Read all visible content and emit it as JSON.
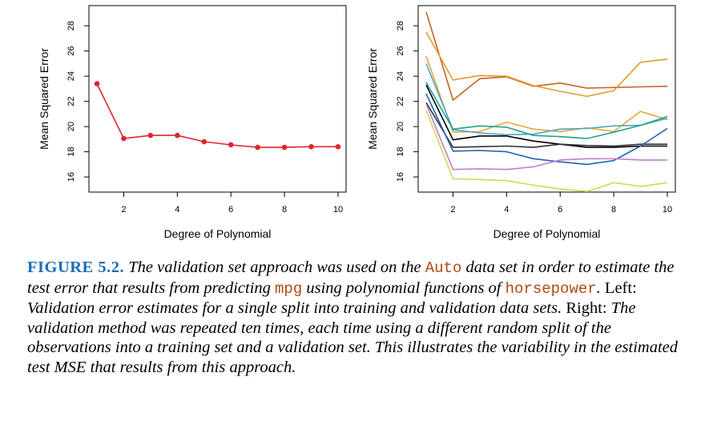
{
  "chart_data": [
    {
      "type": "line",
      "panel": "left",
      "xlabel": "Degree of Polynomial",
      "ylabel": "Mean Squared Error",
      "xlim": [
        0.7,
        10.3
      ],
      "ylim": [
        14.8,
        29.6
      ],
      "xticks": [
        2,
        4,
        6,
        8,
        10
      ],
      "yticks": [
        16,
        18,
        20,
        22,
        24,
        26,
        28
      ],
      "grid": false,
      "x": [
        1,
        2,
        3,
        4,
        5,
        6,
        7,
        8,
        9,
        10
      ],
      "series": [
        {
          "color": "#e0262f",
          "markers": true,
          "values": [
            23.4,
            19.05,
            19.3,
            19.3,
            18.8,
            18.55,
            18.35,
            18.35,
            18.4,
            18.4
          ]
        }
      ]
    },
    {
      "type": "line",
      "panel": "right",
      "xlabel": "Degree of Polynomial",
      "ylabel": "Mean Squared Error",
      "xlim": [
        0.7,
        10.3
      ],
      "ylim": [
        14.8,
        29.6
      ],
      "xticks": [
        2,
        4,
        6,
        8,
        10
      ],
      "yticks": [
        16,
        18,
        20,
        22,
        24,
        26,
        28
      ],
      "grid": false,
      "x": [
        1,
        2,
        3,
        4,
        5,
        6,
        7,
        8,
        9,
        10
      ],
      "series": [
        {
          "color": "#c8631f",
          "values": [
            29.1,
            22.1,
            23.8,
            23.95,
            23.2,
            23.45,
            23.05,
            23.1,
            23.15,
            23.2
          ]
        },
        {
          "color": "#e39b2c",
          "values": [
            27.5,
            23.7,
            24.05,
            24.0,
            23.25,
            22.8,
            22.4,
            22.85,
            25.1,
            25.35
          ]
        },
        {
          "color": "#e8a93a",
          "values": [
            25.6,
            19.55,
            19.6,
            20.35,
            19.8,
            19.6,
            19.9,
            19.6,
            21.2,
            20.55
          ]
        },
        {
          "color": "#4aa6c9",
          "values": [
            25.0,
            19.75,
            19.5,
            19.35,
            19.4,
            19.8,
            19.85,
            20.05,
            20.1,
            20.65
          ]
        },
        {
          "color": "#23a38b",
          "values": [
            23.5,
            19.8,
            20.05,
            19.95,
            19.3,
            19.2,
            19.05,
            19.55,
            20.1,
            20.8
          ]
        },
        {
          "color": "#000000",
          "values": [
            23.3,
            18.95,
            19.25,
            19.25,
            18.85,
            18.6,
            18.35,
            18.35,
            18.45,
            18.45
          ]
        },
        {
          "color": "#333333",
          "values": [
            21.9,
            18.35,
            18.4,
            18.45,
            18.35,
            18.6,
            18.5,
            18.45,
            18.6,
            18.6
          ]
        },
        {
          "color": "#1f63ae",
          "values": [
            22.6,
            18.05,
            18.1,
            18.0,
            17.45,
            17.2,
            17.0,
            17.3,
            18.45,
            19.85
          ]
        },
        {
          "color": "#c57ad0",
          "values": [
            21.8,
            16.6,
            16.65,
            16.6,
            16.8,
            17.35,
            17.45,
            17.45,
            17.35,
            17.35
          ]
        },
        {
          "color": "#cbdc56",
          "values": [
            21.3,
            15.85,
            15.8,
            15.7,
            15.35,
            15.05,
            14.85,
            15.55,
            15.25,
            15.55
          ]
        }
      ]
    }
  ],
  "caption": {
    "label": "FIGURE 5.2.",
    "p1": " The validation set approach was used on the ",
    "code1": "Auto",
    "p2": " data set in order to estimate the test error that results from predicting ",
    "code2": "mpg",
    "p3": " using polynomial functions of ",
    "code3": "horsepower",
    "p4": ". ",
    "left_word": "Left:",
    "p5": " Validation error estimates for a single split into training and validation data sets. ",
    "right_word": "Right:",
    "p6": " The validation method was repeated ten times, each time using a different random split of the observations into a training set and a validation set. This illustrates the variability in the estimated test MSE that results from this approach."
  }
}
